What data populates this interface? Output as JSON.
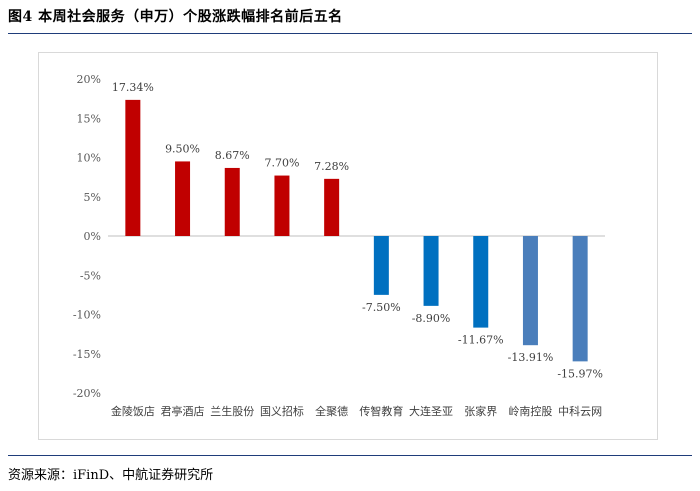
{
  "header": {
    "title": "图4  本周社会服务（申万）个股涨跌幅排名前后五名"
  },
  "footer": {
    "source": "资源来源：iFinD、中航证券研究所"
  },
  "colors": {
    "up": "#c00000",
    "down_dark": "#0070c0",
    "down_light": "#4a7ebb",
    "axis": "#bfbfbf",
    "rule": "#1f3d7a"
  },
  "chart_data": {
    "type": "bar",
    "title": "",
    "xlabel": "",
    "ylabel": "",
    "ylim": [
      -20,
      20
    ],
    "yticks": [
      20,
      15,
      10,
      5,
      0,
      -5,
      -10,
      -15,
      -20
    ],
    "ytick_labels": [
      "20%",
      "15%",
      "10%",
      "5%",
      "0%",
      "-5%",
      "-10%",
      "-15%",
      "-20%"
    ],
    "categories": [
      "金陵饭店",
      "君亭酒店",
      "兰生股份",
      "国义招标",
      "全聚德",
      "传智教育",
      "大连圣亚",
      "张家界",
      "岭南控股",
      "中科云网"
    ],
    "values": [
      17.34,
      9.5,
      8.67,
      7.7,
      7.28,
      -7.5,
      -8.9,
      -11.67,
      -13.91,
      -15.97
    ],
    "value_labels": [
      "17.34%",
      "9.50%",
      "8.67%",
      "7.70%",
      "7.28%",
      "-7.50%",
      "-8.90%",
      "-11.67%",
      "-13.91%",
      "-15.97%"
    ],
    "grid": false,
    "legend": "none"
  }
}
